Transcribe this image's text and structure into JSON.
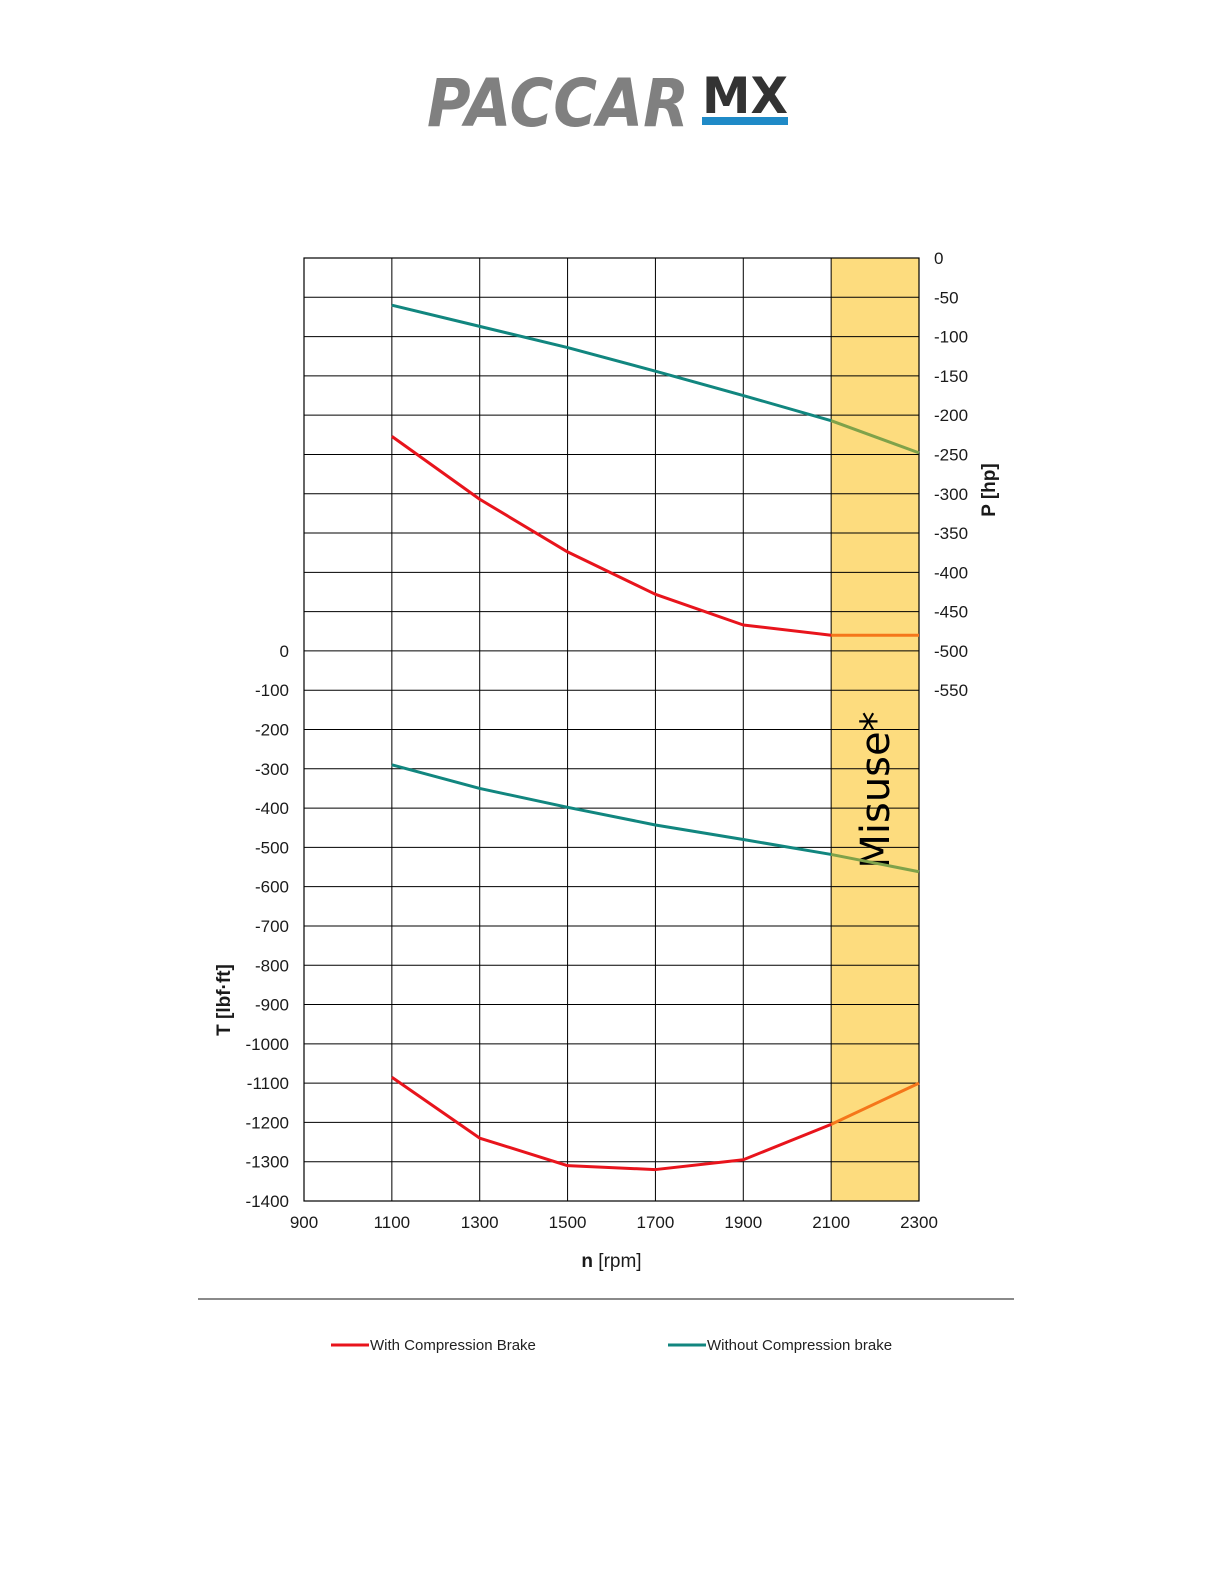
{
  "logo": {
    "brand": "PACCAR",
    "model": "MX",
    "brand_color": "#808080",
    "accent_color": "#1f8ac7"
  },
  "chart_data": {
    "type": "line",
    "x": [
      1100,
      1300,
      1500,
      1700,
      1900,
      2100,
      2300
    ],
    "x_ticks": [
      "900",
      "1100",
      "1300",
      "1500",
      "1700",
      "1900",
      "2100",
      "2300"
    ],
    "xlim": [
      900,
      2300
    ],
    "xlabel_bold": "n",
    "xlabel_rest": " [rpm]",
    "left_axis": {
      "label": "T [lbf·ft]",
      "ticks": [
        "0",
        "-100",
        "-200",
        "-300",
        "-400",
        "-500",
        "-600",
        "-700",
        "-800",
        "-900",
        "-1000",
        "-1100",
        "-1200",
        "-1300",
        "-1400"
      ],
      "range": [
        -1400,
        0
      ]
    },
    "right_axis": {
      "label": "P [hp]",
      "ticks": [
        "0",
        "-50",
        "-100",
        "-150",
        "-200",
        "-250",
        "-300",
        "-350",
        "-400",
        "-450",
        "-500",
        "-550"
      ],
      "range": [
        -550,
        0
      ]
    },
    "series": [
      {
        "name": "With Compression Brake",
        "quantity": "torque",
        "axis": "left",
        "color": "#e8141c",
        "misuse_color": "#f5761a",
        "values": [
          -1085,
          -1240,
          -1310,
          -1320,
          -1295,
          -1205,
          -1100
        ]
      },
      {
        "name": "Without Compression brake",
        "quantity": "torque",
        "axis": "left",
        "color": "#11867f",
        "misuse_color": "#7fa24a",
        "values": [
          -290,
          -350,
          -398,
          -443,
          -480,
          -518,
          -562
        ]
      },
      {
        "name": "With Compression Brake",
        "quantity": "power",
        "axis": "right",
        "color": "#e8141c",
        "misuse_color": "#f5761a",
        "values": [
          -227,
          -307,
          -374,
          -428,
          -467,
          -480,
          -480
        ]
      },
      {
        "name": "Without Compression brake",
        "quantity": "power",
        "axis": "right",
        "color": "#11867f",
        "misuse_color": "#7fa24a",
        "values": [
          -60,
          -87,
          -114,
          -144,
          -175,
          -207,
          -248
        ]
      }
    ],
    "misuse_region": {
      "label": "Misuse*",
      "x_range": [
        2100,
        2300
      ],
      "color": "#fddc7e"
    },
    "grid": true,
    "legend": {
      "placement": "bottom",
      "entries": [
        {
          "label": "With Compression Brake",
          "color": "#e8141c"
        },
        {
          "label": "Without Compression brake",
          "color": "#11867f"
        }
      ]
    }
  }
}
